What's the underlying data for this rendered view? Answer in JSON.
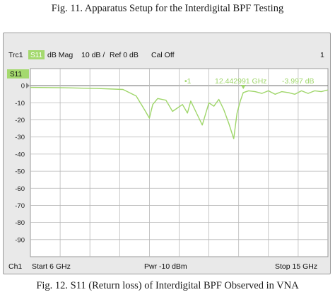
{
  "captions": {
    "top": "Fig. 11. Apparatus Setup for the Interdigital BPF Testing",
    "bottom": "Fig. 12. S11 (Return loss) of Interdigital BPF Observed in VNA"
  },
  "header": {
    "trace": "Trc1",
    "param": "S11",
    "format": "dB Mag",
    "scale": "10 dB /",
    "ref": "Ref 0 dB",
    "cal": "Cal Off",
    "channel_index": "1"
  },
  "trace_label": "S11",
  "marker": {
    "label": "•1",
    "freq": "12.442991 GHz",
    "value": "-3.997 dB"
  },
  "footer": {
    "channel": "Ch1",
    "start": "Start  6 GHz",
    "power": "Pwr  -10 dBm",
    "stop": "Stop  15 GHz"
  },
  "colors": {
    "trace": "#9fd66a",
    "badge": "#a4d96e",
    "grid": "#b8b8b8",
    "ref_line": "#777777"
  },
  "chart_data": {
    "type": "line",
    "title": "",
    "xlabel": "",
    "ylabel": "",
    "xlim": [
      6,
      15
    ],
    "ylim": [
      -100,
      10
    ],
    "ref_level": 0,
    "yticks": [
      0,
      -10,
      -20,
      -30,
      -40,
      -50,
      -60,
      -70,
      -80,
      -90
    ],
    "ytick_labels": [
      "0",
      "-10",
      "-20",
      "-30",
      "-40",
      "-50",
      "-60",
      "-70",
      "-80",
      "-90"
    ],
    "grid": true,
    "series": [
      {
        "x": [
          6.0,
          7.0,
          8.0,
          8.8,
          9.2,
          9.45,
          9.6,
          9.7,
          9.85,
          10.1,
          10.3,
          10.6,
          10.75,
          10.85,
          11.0,
          11.2,
          11.4,
          11.55,
          11.7,
          11.85,
          12.0,
          12.15,
          12.25,
          12.35,
          12.44,
          12.6,
          12.8,
          13.0,
          13.2,
          13.4,
          13.6,
          13.8,
          14.0,
          14.2,
          14.4,
          14.6,
          14.8,
          15.0
        ],
        "y": [
          -1.0,
          -1.2,
          -1.6,
          -2.2,
          -6.0,
          -14.0,
          -19.0,
          -11.0,
          -7.5,
          -8.5,
          -15.0,
          -11.0,
          -16.0,
          -9.0,
          -15.0,
          -23.0,
          -10.0,
          -12.0,
          -8.0,
          -14.0,
          -22.0,
          -31.0,
          -16.0,
          -9.0,
          -4.0,
          -3.0,
          -3.5,
          -4.5,
          -3.0,
          -5.0,
          -3.5,
          -4.0,
          -5.0,
          -3.0,
          -4.5,
          -3.0,
          -3.5,
          -2.5
        ]
      }
    ]
  }
}
